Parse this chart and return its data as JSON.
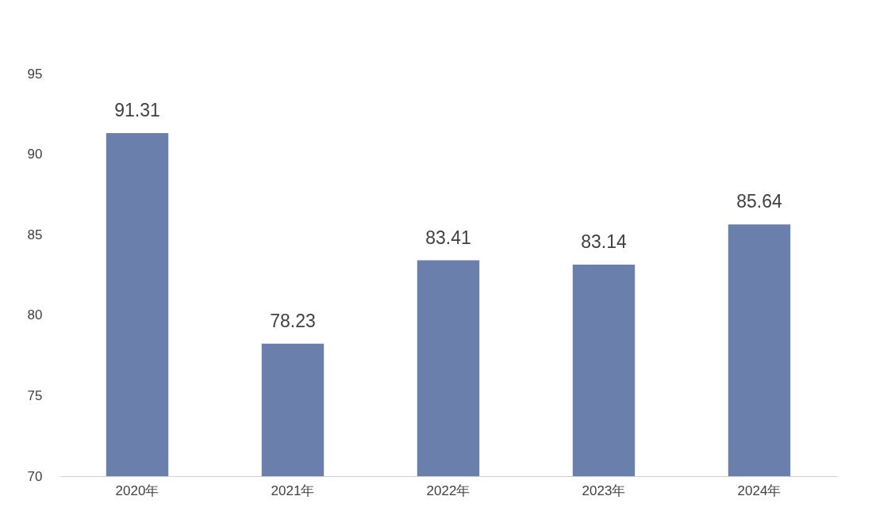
{
  "chart_data": {
    "type": "bar",
    "categories": [
      "2020年",
      "2021年",
      "2022年",
      "2023年",
      "2024年"
    ],
    "values": [
      91.31,
      78.23,
      83.41,
      83.14,
      85.64
    ],
    "color": "#6a7fac",
    "ylim": [
      70,
      95
    ],
    "yticks": [
      70,
      75,
      80,
      85,
      90,
      95
    ],
    "grid": false,
    "data_labels": true
  }
}
